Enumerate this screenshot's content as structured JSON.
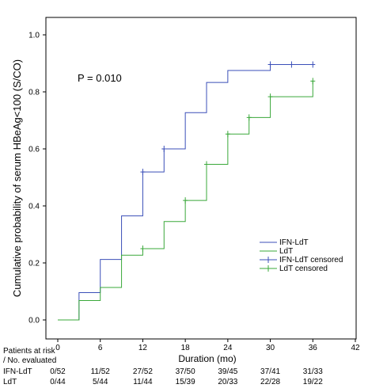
{
  "chart_data": {
    "type": "line",
    "step": true,
    "xlabel": "Duration (mo)",
    "ylabel": "Cumulative probability of serum HBeAg<100 (S/CO)",
    "xlim": [
      0,
      42
    ],
    "ylim": [
      0,
      1
    ],
    "xticks": [
      "0",
      "6",
      "12",
      "18",
      "24",
      "30",
      "36",
      "42"
    ],
    "yticks": [
      "0.0",
      "0.2",
      "0.4",
      "0.6",
      "0.8",
      "1.0"
    ],
    "annotation": "P = 0.010",
    "grid": false,
    "legend_position": "lower-right",
    "legend": [
      "IFN-LdT",
      "LdT",
      "IFN-LdT censored",
      "LdT censored"
    ],
    "series": [
      {
        "name": "IFN-LdT",
        "color": "#3b4fb8",
        "x": [
          0,
          3,
          6,
          9,
          12,
          15,
          18,
          21,
          24,
          30,
          36
        ],
        "y": [
          0,
          0.096,
          0.212,
          0.365,
          0.519,
          0.6,
          0.727,
          0.833,
          0.875,
          0.896,
          0.896
        ],
        "censored": [
          [
            12,
            0.519
          ],
          [
            15,
            0.6
          ],
          [
            30,
            0.896
          ],
          [
            33,
            0.896
          ],
          [
            36,
            0.896
          ]
        ]
      },
      {
        "name": "LdT",
        "color": "#3aa83a",
        "x": [
          0,
          3,
          6,
          9,
          12,
          15,
          18,
          21,
          24,
          27,
          30,
          36
        ],
        "y": [
          0,
          0.068,
          0.114,
          0.227,
          0.25,
          0.345,
          0.419,
          0.546,
          0.652,
          0.71,
          0.783,
          0.838
        ],
        "censored": [
          [
            12,
            0.25
          ],
          [
            18,
            0.419
          ],
          [
            21,
            0.546
          ],
          [
            24,
            0.652
          ],
          [
            27,
            0.71
          ],
          [
            30,
            0.783
          ],
          [
            36,
            0.838
          ]
        ]
      }
    ]
  },
  "risk_table": {
    "header_line1": "Patients at risk",
    "header_line2": "/ No. evaluated",
    "rows": [
      {
        "label": "IFN-LdT",
        "values": [
          "0/52",
          "11/52",
          "27/52",
          "37/50",
          "39/45",
          "37/41",
          "31/33"
        ]
      },
      {
        "label": "LdT",
        "values": [
          "0/44",
          "5/44",
          "11/44",
          "15/39",
          "20/33",
          "22/28",
          "19/22"
        ]
      }
    ]
  }
}
